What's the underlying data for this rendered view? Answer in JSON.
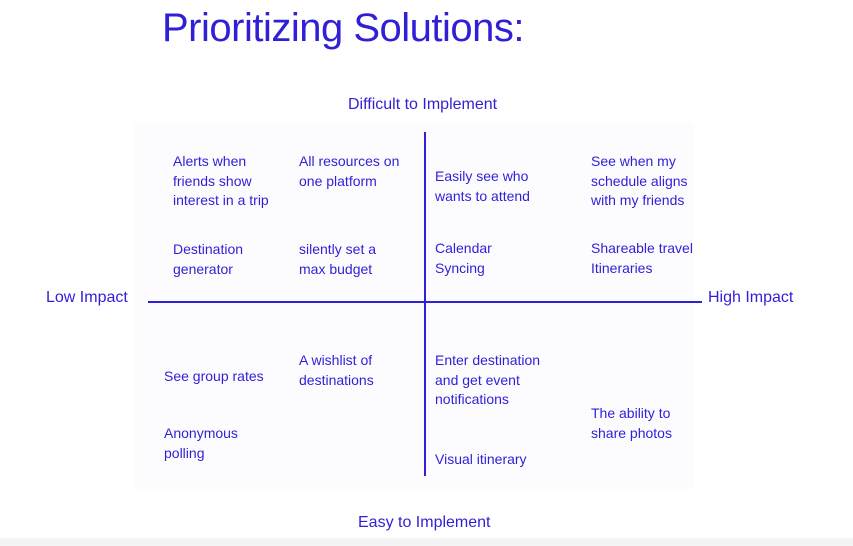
{
  "title": "Prioritizing Solutions:",
  "axes": {
    "top": "Difficult to Implement",
    "bottom": "Easy to Implement",
    "left": "Low Impact",
    "right": "High Impact"
  },
  "quadrants": {
    "difficult_low": [
      "Alerts when\nfriends show\ninterest in a trip",
      "All resources on\none platform",
      "Destination\ngenerator",
      "silently set a\nmax budget"
    ],
    "difficult_high": [
      "Easily see who\nwants to attend",
      "See when my\nschedule aligns\nwith my friends",
      "Calendar\nSyncing",
      "Shareable travel\nItineraries"
    ],
    "easy_low": [
      "See group rates",
      "A wishlist of\ndestinations",
      "Anonymous\npolling"
    ],
    "easy_high": [
      "Enter destination\nand get event\nnotifications",
      "The ability to\nshare photos",
      "Visual itinerary"
    ]
  },
  "colors": {
    "accent": "#2f1fd6",
    "panel": "#fcfcfe"
  }
}
